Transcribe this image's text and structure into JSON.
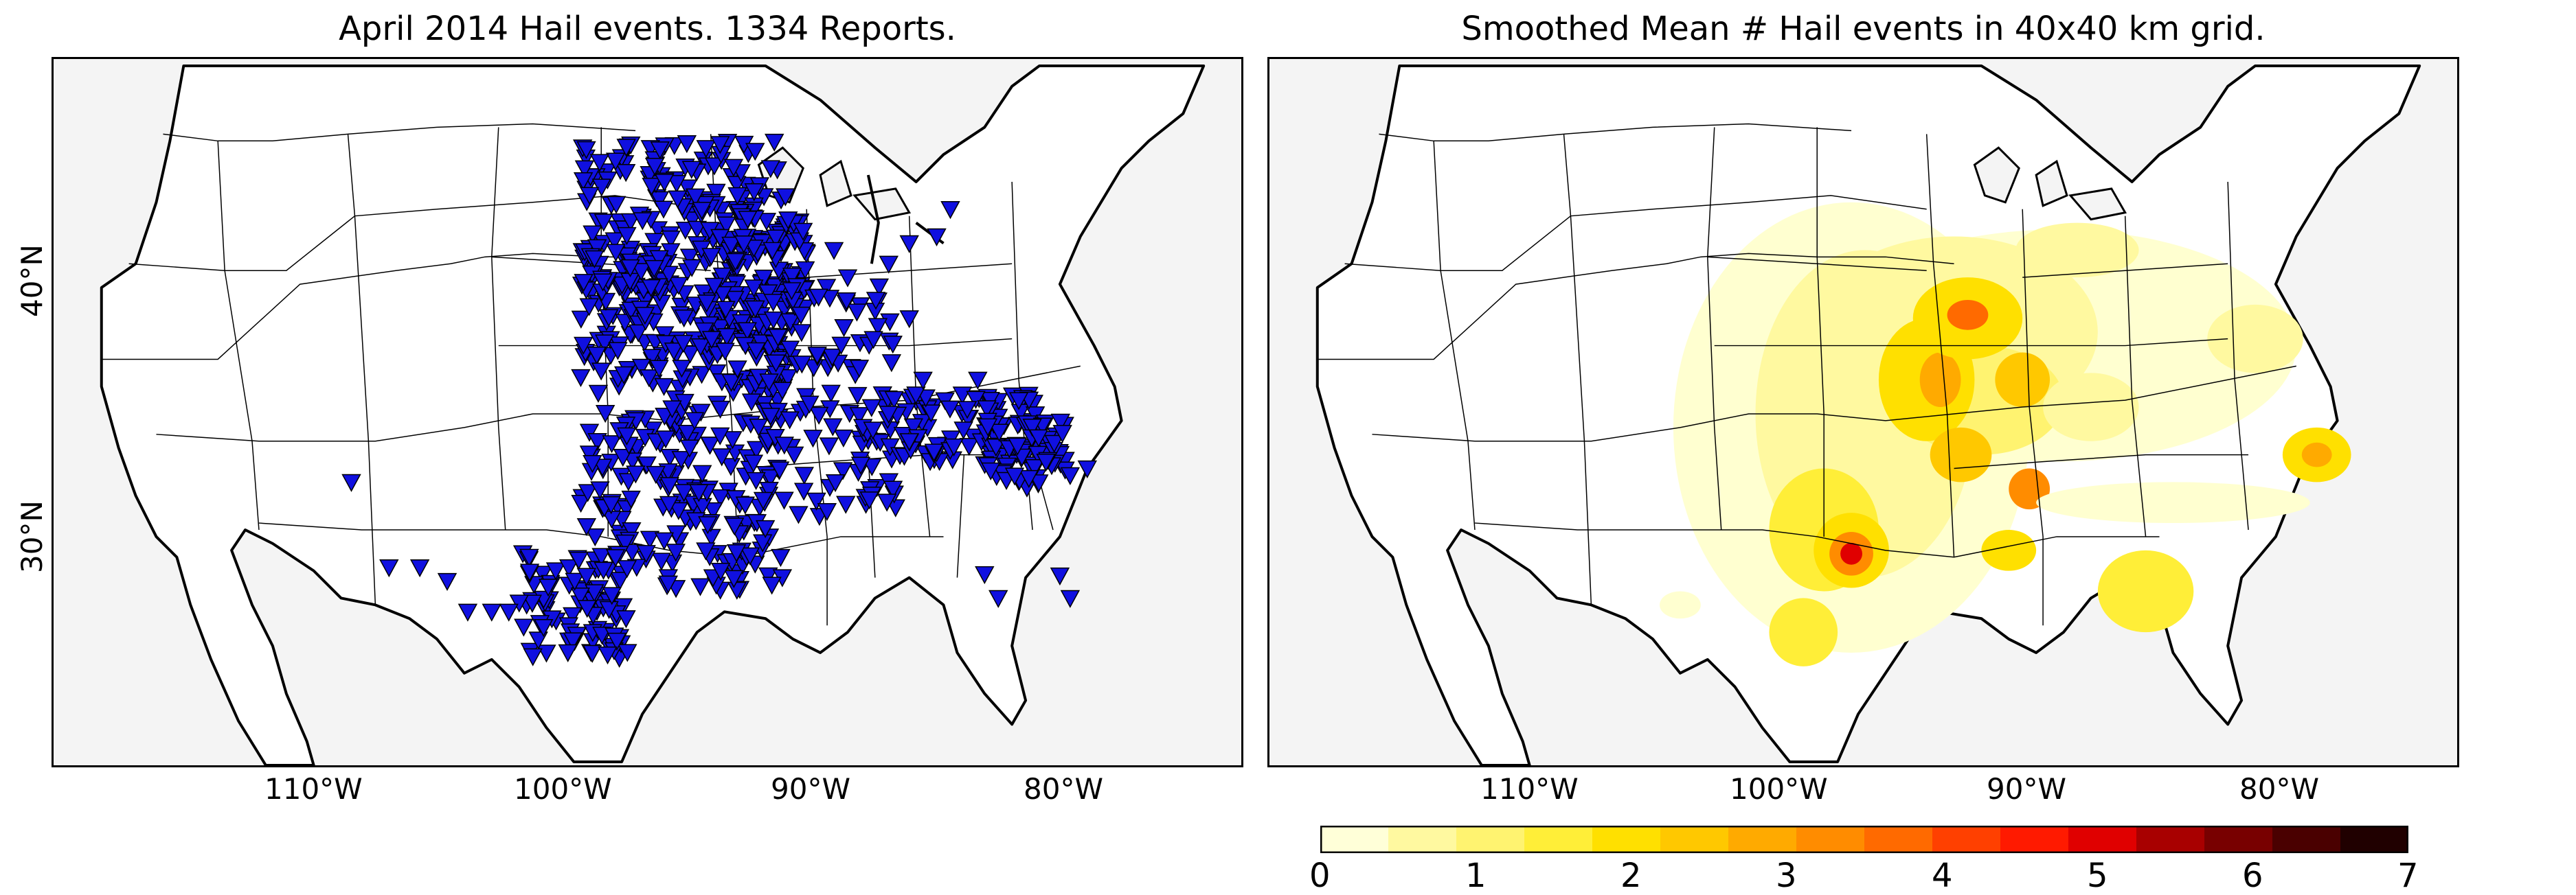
{
  "left_panel": {
    "title": "April 2014 Hail events. 1334 Reports.",
    "lat_labels": [
      "40°N",
      "30°N"
    ],
    "lon_labels": [
      "110°W",
      "100°W",
      "90°W",
      "80°W"
    ],
    "marker_color": "#1010e0",
    "ocean_color": "#f4f4f4"
  },
  "right_panel": {
    "title": "Smoothed Mean # Hail events in 40x40 km grid.",
    "lon_labels": [
      "110°W",
      "100°W",
      "90°W",
      "80°W"
    ]
  },
  "colorbar": {
    "ticks": [
      "0",
      "1",
      "2",
      "3",
      "4",
      "5",
      "6",
      "7"
    ],
    "colors": [
      "#ffffd8",
      "#fff9a0",
      "#fff370",
      "#ffee38",
      "#ffe000",
      "#ffc800",
      "#ffaa00",
      "#ff8c00",
      "#ff6a00",
      "#ff4000",
      "#ff1a00",
      "#e00000",
      "#a80000",
      "#780000",
      "#4a0000",
      "#200000"
    ]
  }
}
